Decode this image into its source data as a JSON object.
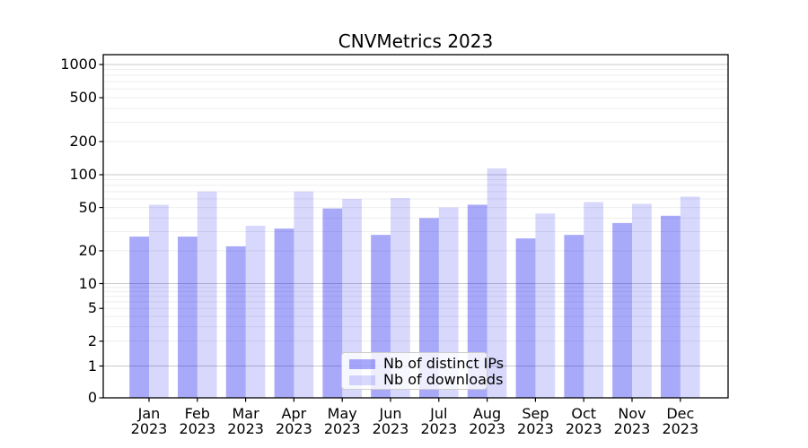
{
  "chart_data": {
    "type": "bar",
    "title": "CNVMetrics 2023",
    "yscale": "symlog",
    "ylim": [
      0,
      1230
    ],
    "y_ticks": [
      0,
      1,
      2,
      5,
      10,
      20,
      50,
      100,
      200,
      500,
      1000
    ],
    "grid": true,
    "legend_position": "lower-center-inside",
    "categories": [
      "Jan",
      "Feb",
      "Mar",
      "Apr",
      "May",
      "Jun",
      "Jul",
      "Aug",
      "Sep",
      "Oct",
      "Nov",
      "Dec"
    ],
    "x_tick_year": "2023",
    "series": [
      {
        "name": "Nb of distinct IPs",
        "color": "#0a0af0",
        "alpha": 0.35,
        "appearance_hex": "#aaaaf8",
        "values": [
          27,
          27,
          22,
          32,
          49,
          28,
          40,
          53,
          26,
          28,
          36,
          42
        ]
      },
      {
        "name": "Nb of downloads",
        "color": "#0a0af0",
        "alpha": 0.16,
        "appearance_hex": "#d8d8f8",
        "values": [
          53,
          70,
          34,
          70,
          60,
          61,
          50,
          114,
          44,
          56,
          54,
          63
        ]
      }
    ]
  },
  "colors": {
    "grid_major": "#c8c8c8",
    "grid_minor": "#eeeeee",
    "axis": "#000000",
    "background": "#ffffff",
    "legend_border": "#cccccc",
    "tick_label": "#000000"
  }
}
